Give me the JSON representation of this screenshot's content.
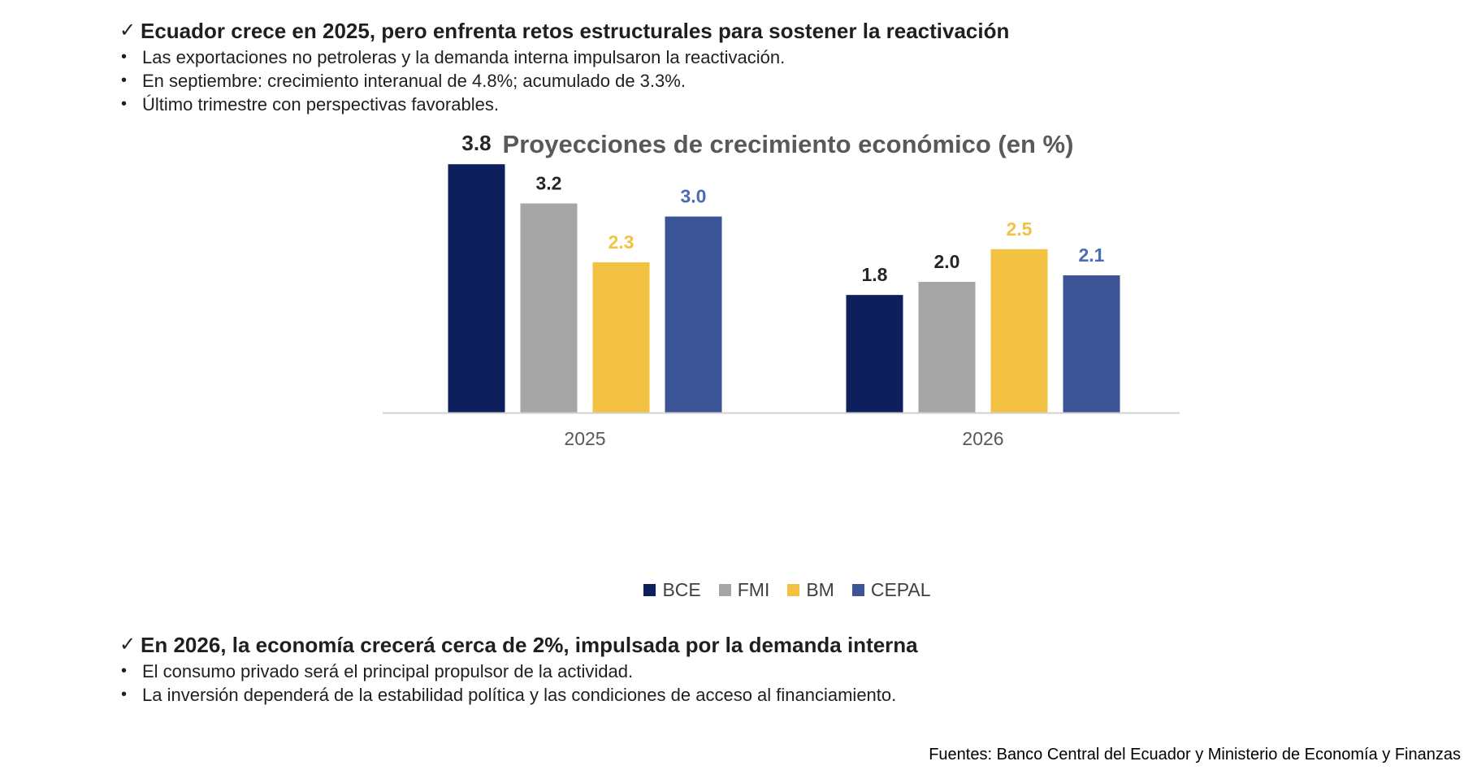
{
  "section1": {
    "check": "✓",
    "heading": "Ecuador crece en 2025, pero enfrenta retos estructurales para sostener la reactivación",
    "bullets": [
      "Las exportaciones no petroleras y la demanda interna impulsaron la reactivación.",
      "En septiembre: crecimiento interanual de 4.8%; acumulado de 3.3%.",
      "Último trimestre con perspectivas favorables."
    ]
  },
  "section2": {
    "check": "✓",
    "heading": "En 2026, la economía crecerá cerca de 2%, impulsada por la demanda interna",
    "bullets": [
      "El consumo privado será el principal propulsor de la actividad.",
      "La inversión dependerá de la estabilidad política y  las condiciones de acceso al financiamiento."
    ]
  },
  "chart_data": {
    "type": "bar",
    "title": "Proyecciones de crecimiento económico (en %)",
    "categories": [
      "2025",
      "2026"
    ],
    "series": [
      {
        "name": "BCE",
        "values": [
          3.8,
          1.8
        ],
        "color": "#0d1f5c",
        "label_color": "#262626"
      },
      {
        "name": "FMI",
        "values": [
          3.2,
          2.0
        ],
        "color": "#a6a6a6",
        "label_color": "#262626"
      },
      {
        "name": "BM",
        "values": [
          2.3,
          2.5
        ],
        "color": "#f4c242",
        "label_color": "#f4c242"
      },
      {
        "name": "CEPAL",
        "values": [
          3.0,
          2.1
        ],
        "color": "#3a5495",
        "label_color": "#4a6bb5"
      }
    ],
    "ylim": [
      0,
      4.2
    ],
    "xlabel": "",
    "ylabel": "",
    "legend_position": "bottom"
  },
  "source": "Fuentes: Banco Central del Ecuador y Ministerio de Economía y Finanzas"
}
